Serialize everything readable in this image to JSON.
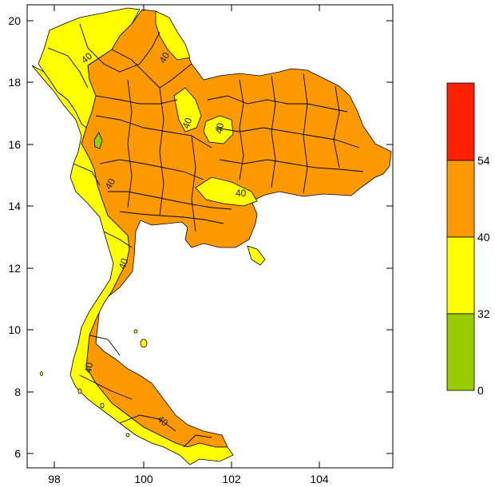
{
  "map": {
    "x_ticks": [
      "98",
      "100",
      "102",
      "104"
    ],
    "y_ticks": [
      "6",
      "8",
      "10",
      "12",
      "14",
      "16",
      "18",
      "20"
    ],
    "contour_labels": [
      "40",
      "40",
      "40",
      "40",
      "40",
      "40",
      "40",
      "40",
      "40"
    ]
  },
  "colorbar": {
    "bins": [
      {
        "color": "#99cc00",
        "from": 0,
        "to": 32
      },
      {
        "color": "#ffff00",
        "from": 32,
        "to": 40
      },
      {
        "color": "#ff9900",
        "from": 40,
        "to": 54
      },
      {
        "color": "#ff2200",
        "from": 54,
        "to": null
      }
    ],
    "labels": [
      "0",
      "32",
      "40",
      "54"
    ]
  }
}
